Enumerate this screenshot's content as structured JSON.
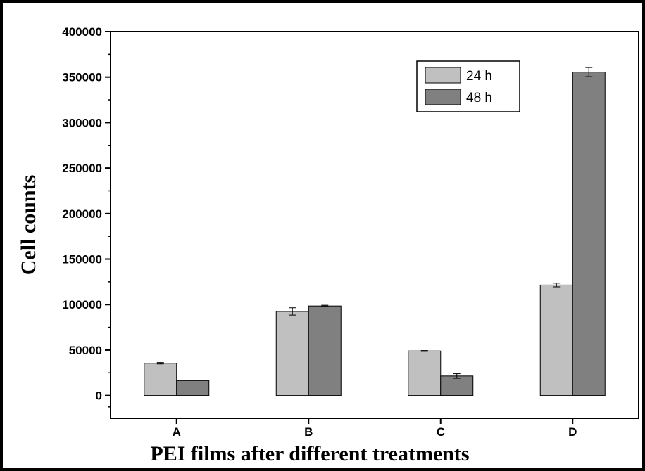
{
  "chart_data": {
    "type": "bar",
    "title": "",
    "xlabel": "PEI films after different treatments",
    "ylabel": "Cell counts",
    "categories": [
      "A",
      "B",
      "C",
      "D"
    ],
    "ylim": [
      -25000,
      400000
    ],
    "yticks": [
      0,
      50000,
      100000,
      150000,
      200000,
      250000,
      300000,
      350000,
      400000
    ],
    "ytick_labels": [
      "0",
      "50000",
      "100000",
      "150000",
      "200000",
      "250000",
      "300000",
      "350000",
      "400000"
    ],
    "grid": false,
    "legend_position": "top-right",
    "series": [
      {
        "name": "24 h",
        "color": "#c0c0c0",
        "values": [
          35500,
          92500,
          49000,
          121500
        ],
        "errors": [
          800,
          4000,
          500,
          2000
        ]
      },
      {
        "name": "48 h",
        "color": "#808080",
        "values": [
          16500,
          98500,
          21500,
          355500
        ],
        "errors": [
          0,
          800,
          2500,
          5000
        ]
      }
    ]
  }
}
